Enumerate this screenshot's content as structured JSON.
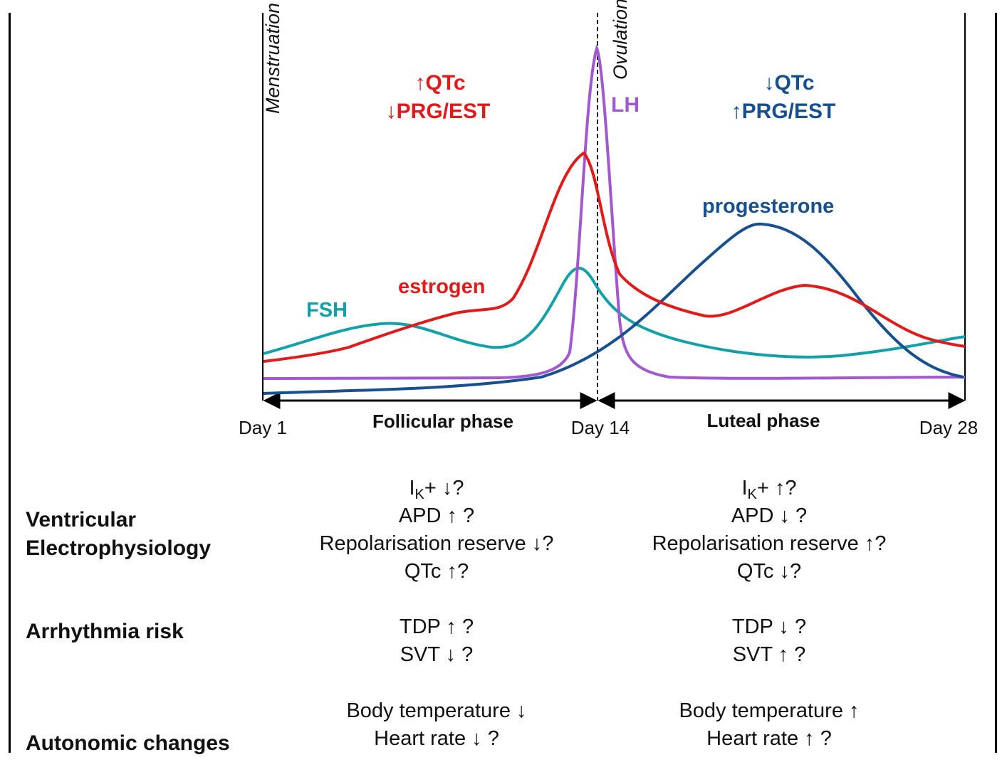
{
  "diagram": {
    "phase_labels": {
      "menstruation": "Menstruation",
      "ovulation": "Ovulation",
      "follicular": "Follicular phase",
      "luteal": "Luteal phase"
    },
    "day_labels": {
      "day1": "Day 1",
      "day14": "Day 14",
      "day28": "Day 28"
    },
    "follicular_annotation": {
      "line1": "↑QTc",
      "line2": "↓PRG/EST"
    },
    "luteal_annotation": {
      "line1": "↓QTc",
      "line2": "↑PRG/EST"
    },
    "curve_labels": {
      "lh": "LH",
      "progesterone": "progesterone",
      "estrogen": "estrogen",
      "fsh": "FSH"
    },
    "colors": {
      "lh": "#a259d0",
      "progesterone": "#17508f",
      "estrogen": "#e11a1a",
      "fsh": "#14a0a8"
    }
  },
  "rows": {
    "ventricular": {
      "label_line1": "Ventricular",
      "label_line2": "Electrophysiology"
    },
    "arrhythmia": {
      "label": "Arrhythmia risk"
    },
    "autonomic": {
      "label": "Autonomic changes"
    }
  },
  "follicular_effects": {
    "ik_main": "I",
    "ik_sub": "K",
    "ik_rest": "+ ↓?",
    "apd": "APD ↑ ?",
    "repol": "Repolarisation reserve ↓?",
    "qtc": "QTc ↑?",
    "tdp": "TDP ↑ ?",
    "svt": "SVT ↓ ?",
    "temp": "Body temperature ↓",
    "hr": "Heart rate ↓ ?"
  },
  "luteal_effects": {
    "ik_main": "I",
    "ik_sub": "K",
    "ik_rest": "+ ↑?",
    "apd": "APD ↓ ?",
    "repol": "Repolarisation reserve ↑?",
    "qtc": "QTc ↓?",
    "tdp": "TDP ↓ ?",
    "svt": "SVT ↑ ?",
    "temp": "Body temperature ↑",
    "hr": "Heart rate ↑  ?"
  }
}
